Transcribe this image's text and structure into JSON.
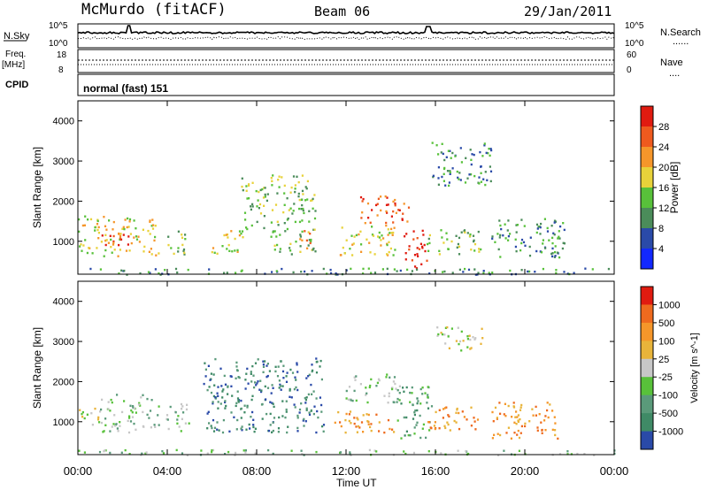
{
  "header": {
    "station": "McMurdo (fitACF)",
    "beam": "Beam 06",
    "date": "29/Jan/2011"
  },
  "panels": {
    "nsky": {
      "left_label": "N.Sky",
      "left_ticks": [
        "10^5",
        "10^0"
      ],
      "right_label": "N.Search",
      "right_ticks": [
        "10^5",
        "10^0"
      ],
      "right_legend": "......"
    },
    "freq": {
      "left_label_1": "Freq.",
      "left_label_2": "[MHz]",
      "left_ticks": [
        "18",
        "8"
      ],
      "right_label": "Nave",
      "right_ticks": [
        "60",
        "0"
      ],
      "right_legend": "...."
    },
    "cpid": {
      "label": "CPID",
      "value": "normal (fast) 151"
    }
  },
  "chart_data": [
    {
      "type": "heatmap",
      "title": "",
      "ylabel": "Slant Range [km]",
      "xlabel": "",
      "ylim": [
        180,
        4500
      ],
      "xlim_hours": [
        0,
        24
      ],
      "yticks": [
        "1000",
        "2000",
        "3000",
        "4000"
      ],
      "colorbar": {
        "label": "Power [dB]",
        "ticks": [
          "4",
          "8",
          "12",
          "16",
          "20",
          "24",
          "28"
        ],
        "colors": [
          "#1228ff",
          "#2a4aa8",
          "#4b8c5a",
          "#58c13a",
          "#e8d23a",
          "#f5962a",
          "#ee5a1e",
          "#e01b10"
        ]
      },
      "regions": [
        {
          "t0": 0.0,
          "t1": 3.6,
          "r0": 650,
          "r1": 1650,
          "level": 4
        },
        {
          "t0": 0.9,
          "t1": 2.4,
          "r0": 850,
          "r1": 1200,
          "level": 6
        },
        {
          "t0": 3.9,
          "t1": 4.8,
          "r0": 700,
          "r1": 1400,
          "level": 3
        },
        {
          "t0": 5.9,
          "t1": 7.4,
          "r0": 700,
          "r1": 1300,
          "level": 4
        },
        {
          "t0": 7.3,
          "t1": 8.5,
          "r0": 1300,
          "r1": 2600,
          "level": 3
        },
        {
          "t0": 8.6,
          "t1": 10.6,
          "r0": 700,
          "r1": 2700,
          "level": 3
        },
        {
          "t0": 9.9,
          "t1": 10.5,
          "r0": 800,
          "r1": 1300,
          "level": 6
        },
        {
          "t0": 11.7,
          "t1": 14.2,
          "r0": 650,
          "r1": 1450,
          "level": 4
        },
        {
          "t0": 12.6,
          "t1": 14.8,
          "r0": 1450,
          "r1": 2150,
          "level": 6
        },
        {
          "t0": 14.5,
          "t1": 15.6,
          "r0": 350,
          "r1": 1300,
          "level": 7
        },
        {
          "t0": 15.6,
          "t1": 18.0,
          "r0": 700,
          "r1": 1350,
          "level": 3
        },
        {
          "t0": 15.8,
          "t1": 18.5,
          "r0": 2400,
          "r1": 3500,
          "level": 2
        },
        {
          "t0": 18.5,
          "t1": 21.8,
          "r0": 600,
          "r1": 1600,
          "level": 2
        },
        {
          "t0": 0.0,
          "t1": 24.0,
          "r0": 190,
          "r1": 350,
          "level": 2
        }
      ]
    },
    {
      "type": "heatmap",
      "title": "",
      "ylabel": "Slant Range [km]",
      "xlabel": "Time UT",
      "ylim": [
        180,
        4500
      ],
      "xlim_hours": [
        0,
        24
      ],
      "yticks": [
        "1000",
        "2000",
        "3000",
        "4000"
      ],
      "xticks": [
        "00:00",
        "04:00",
        "08:00",
        "12:00",
        "16:00",
        "20:00",
        "00:00"
      ],
      "colorbar": {
        "label": "Velocity [m s^-1]",
        "ticks": [
          "1000",
          "500",
          "100",
          "25",
          "-25",
          "-100",
          "-500",
          "-1000"
        ],
        "colors": [
          "#2a4aa8",
          "#3f8a66",
          "#5a9a7a",
          "#58c13a",
          "#c7c7c7",
          "#e8b43a",
          "#f5962a",
          "#ee6a1e",
          "#e01b10"
        ]
      },
      "regions": [
        {
          "t0": 0.0,
          "t1": 0.9,
          "r0": 900,
          "r1": 1400,
          "level": 4
        },
        {
          "t0": 0.9,
          "t1": 3.6,
          "r0": 750,
          "r1": 1700,
          "level": 3
        },
        {
          "t0": 3.9,
          "t1": 5.0,
          "r0": 750,
          "r1": 1500,
          "level": 3
        },
        {
          "t0": 5.6,
          "t1": 11.0,
          "r0": 750,
          "r1": 2600,
          "level": 1
        },
        {
          "t0": 11.4,
          "t1": 14.2,
          "r0": 750,
          "r1": 1300,
          "level": 6
        },
        {
          "t0": 11.9,
          "t1": 14.4,
          "r0": 1500,
          "r1": 2200,
          "level": 3
        },
        {
          "t0": 14.2,
          "t1": 15.8,
          "r0": 600,
          "r1": 1900,
          "level": 2
        },
        {
          "t0": 15.5,
          "t1": 18.0,
          "r0": 800,
          "r1": 1400,
          "level": 6
        },
        {
          "t0": 16.0,
          "t1": 18.2,
          "r0": 2800,
          "r1": 3400,
          "level": 4
        },
        {
          "t0": 18.5,
          "t1": 21.5,
          "r0": 600,
          "r1": 1500,
          "level": 6
        },
        {
          "t0": 0.0,
          "t1": 24.0,
          "r0": 190,
          "r1": 320,
          "level": 3
        }
      ]
    }
  ]
}
